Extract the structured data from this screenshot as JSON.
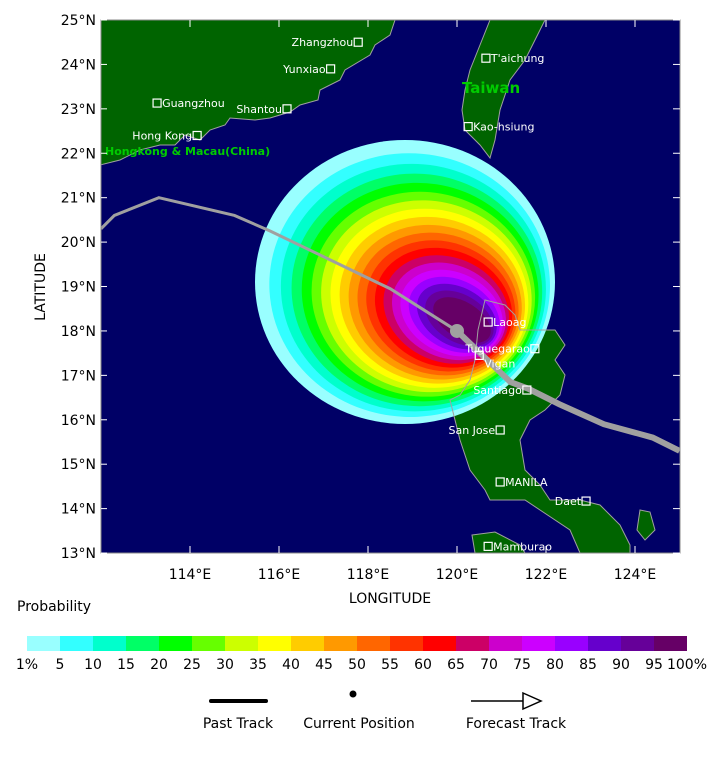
{
  "map": {
    "lon_range": [
      112,
      125
    ],
    "lat_range": [
      13,
      25
    ],
    "x_axis_label": "LONGITUDE",
    "y_axis_label": "LATITUDE",
    "lon_ticks": [
      "114°E",
      "116°E",
      "118°E",
      "120°E",
      "122°E",
      "124°E"
    ],
    "lat_ticks": [
      "13°N",
      "14°N",
      "15°N",
      "16°N",
      "17°N",
      "18°N",
      "19°N",
      "20°N",
      "21°N",
      "22°N",
      "23°N",
      "24°N",
      "25°N"
    ],
    "colors": {
      "ocean": "#000066",
      "land": "#006400",
      "coast": "#a0a0a0",
      "track": "#a0a0a0",
      "region_label": "#00cc00"
    },
    "region_labels": [
      "Taiwan",
      "Hongkong & Macau(China)"
    ],
    "cities": [
      {
        "name": "Zhangzhou",
        "lon": 117.78,
        "lat": 24.5,
        "side": "left"
      },
      {
        "name": "Yunxiao",
        "lon": 117.16,
        "lat": 23.9,
        "side": "left"
      },
      {
        "name": "Shantou",
        "lon": 116.18,
        "lat": 23.0,
        "side": "left"
      },
      {
        "name": "Guangzhou",
        "lon": 113.26,
        "lat": 23.13,
        "side": "right"
      },
      {
        "name": "Hong Kong",
        "lon": 114.16,
        "lat": 22.4,
        "side": "left"
      },
      {
        "name": "T'aichung",
        "lon": 120.65,
        "lat": 24.14,
        "side": "right"
      },
      {
        "name": "Kao-hsiung",
        "lon": 120.25,
        "lat": 22.6,
        "side": "right"
      },
      {
        "name": "Laoag",
        "lon": 120.7,
        "lat": 18.2,
        "side": "right"
      },
      {
        "name": "Tuguegarao",
        "lon": 121.75,
        "lat": 17.6,
        "side": "left"
      },
      {
        "name": "Vigan",
        "lon": 120.5,
        "lat": 17.45,
        "side": "right"
      },
      {
        "name": "Santiago",
        "lon": 121.57,
        "lat": 16.67,
        "side": "left"
      },
      {
        "name": "San Jose",
        "lon": 120.97,
        "lat": 15.77,
        "side": "left"
      },
      {
        "name": "MANILA",
        "lon": 120.97,
        "lat": 14.6,
        "side": "right"
      },
      {
        "name": "Daet",
        "lon": 122.9,
        "lat": 14.17,
        "side": "left"
      },
      {
        "name": "Mamburao",
        "lon": 120.7,
        "lat": 13.15,
        "side": "right"
      }
    ],
    "past_track": [
      [
        112,
        20.3
      ],
      [
        112.3,
        20.6
      ],
      [
        113.3,
        21.0
      ],
      [
        115.0,
        20.6
      ],
      [
        115.8,
        20.25
      ],
      [
        118.5,
        18.95
      ],
      [
        120.0,
        18.0
      ]
    ],
    "current_position": [
      120.0,
      18.0
    ],
    "forecast_track": [
      [
        120.0,
        18.0
      ],
      [
        121.2,
        16.85
      ],
      [
        121.6,
        16.7
      ],
      [
        122.3,
        16.35
      ],
      [
        123.3,
        15.9
      ],
      [
        124.4,
        15.6
      ],
      [
        125.0,
        15.3
      ]
    ]
  },
  "legend": {
    "title": "Probability",
    "colors": [
      "#99ffff",
      "#33ffff",
      "#00ffcc",
      "#00ff66",
      "#00ff00",
      "#66ff00",
      "#ccff00",
      "#ffff00",
      "#ffcc00",
      "#ff9900",
      "#ff6600",
      "#ff3300",
      "#ff0000",
      "#cc0066",
      "#cc00cc",
      "#cc00ff",
      "#9900ff",
      "#6600cc",
      "#660099",
      "#660066"
    ],
    "labels": [
      "1%",
      "5",
      "10",
      "15",
      "20",
      "25",
      "30",
      "35",
      "40",
      "45",
      "50",
      "55",
      "60",
      "65",
      "70",
      "75",
      "80",
      "85",
      "90",
      "95",
      "100%"
    ],
    "past_track_label": "Past Track",
    "current_position_label": "Current Position",
    "forecast_track_label": "Forecast Track"
  }
}
